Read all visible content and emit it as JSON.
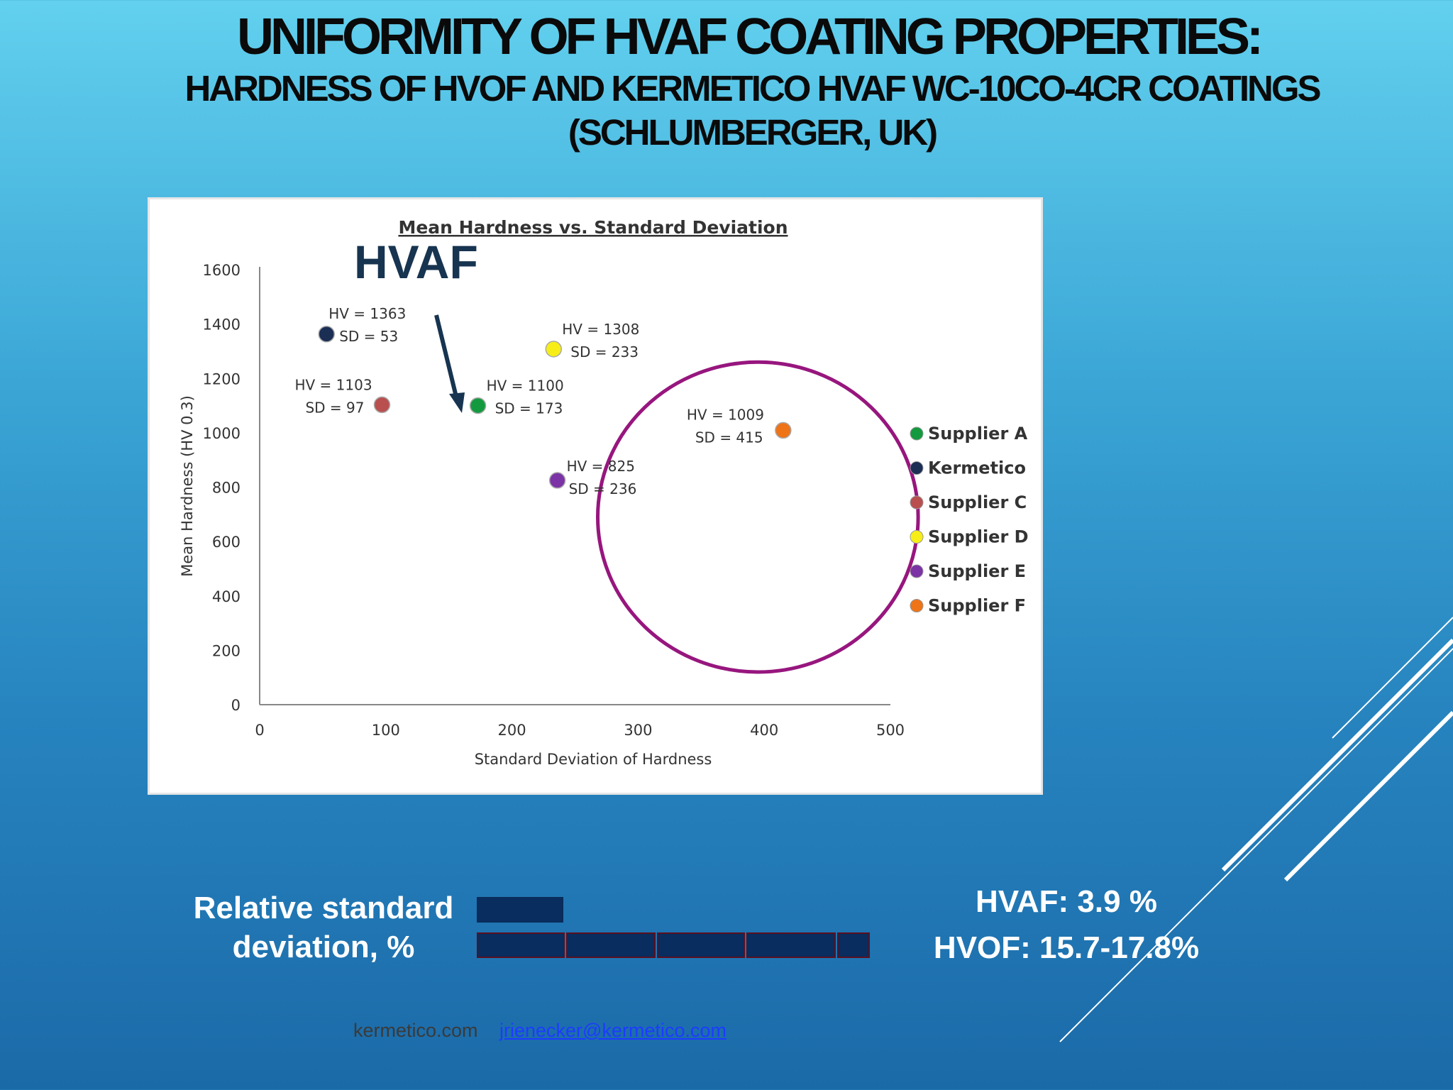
{
  "slide": {
    "title": "UNIFORMITY OF HVAF COATING PROPERTIES:",
    "subtitle_line1": "HARDNESS OF HVOF AND KERMETICO HVAF WC-10CO-4CR COATINGS",
    "subtitle_line2": "(SCHLUMBERGER, UK)"
  },
  "chart_data": {
    "type": "scatter",
    "title": "Mean Hardness vs. Standard Deviation",
    "xlabel": "Standard Deviation  of Hardness",
    "ylabel": "Mean Hardness  (HV 0.3)",
    "xlim": [
      0,
      500
    ],
    "ylim": [
      0,
      1600
    ],
    "x_ticks": [
      {
        "value": 0,
        "label": "0"
      },
      {
        "value": 100,
        "label": "100"
      },
      {
        "value": 200,
        "label": "200"
      },
      {
        "value": 300,
        "label": "300"
      },
      {
        "value": 400,
        "label": "400"
      },
      {
        "value": 500,
        "label": "500"
      }
    ],
    "y_ticks": [
      {
        "value": 0,
        "label": "0"
      },
      {
        "value": 200,
        "label": "200"
      },
      {
        "value": 400,
        "label": "400"
      },
      {
        "value": 600,
        "label": "600"
      },
      {
        "value": 800,
        "label": "800"
      },
      {
        "value": 1000,
        "label": "1000"
      },
      {
        "value": 1200,
        "label": "1200"
      },
      {
        "value": 1400,
        "label": "1400"
      },
      {
        "value": 1600,
        "label": "1600"
      }
    ],
    "grid": false,
    "legend_position": "right",
    "series": [
      {
        "name": "Supplier A",
        "color": "#139a3f",
        "x": 173,
        "y": 1100,
        "label_hv": "HV = 1100",
        "label_sd": "SD = 173"
      },
      {
        "name": "Kermetico",
        "color": "#1b2e54",
        "x": 53,
        "y": 1363,
        "label_hv": "HV = 1363",
        "label_sd": "SD = 53"
      },
      {
        "name": "Supplier C",
        "color": "#b94f4f",
        "x": 97,
        "y": 1103,
        "label_hv": "HV = 1103",
        "label_sd": "SD = 97"
      },
      {
        "name": "Supplier D",
        "color": "#f6ee16",
        "x": 233,
        "y": 1308,
        "label_hv": "HV = 1308",
        "label_sd": "SD = 233"
      },
      {
        "name": "Supplier E",
        "color": "#7b33a6",
        "x": 236,
        "y": 825,
        "label_hv": "HV = 825",
        "label_sd": "SD = 236"
      },
      {
        "name": "Supplier F",
        "color": "#ee7417",
        "x": 415,
        "y": 1009,
        "label_hv": "HV = 1009",
        "label_sd": "SD = 415"
      }
    ],
    "annotation": {
      "text": "HVAF",
      "color": "#173450",
      "arrow_color": "#173450"
    },
    "highlight": {
      "shape": "ellipse",
      "color": "#97167e"
    }
  },
  "bottom": {
    "rsd_label_line1": "Relative standard",
    "rsd_label_line2": "deviation, %",
    "hvaf_stat": "HVAF: 3.9 %",
    "hvof_stat": "HVOF: 15.7-17.8%",
    "rsd_bars": [
      {
        "name": "HVAF",
        "value": 3.9
      },
      {
        "name": "HVOF",
        "value": 17.8
      }
    ]
  },
  "footer": {
    "site": "kermetico.com",
    "email": "jrienecker@kermetico.com"
  }
}
